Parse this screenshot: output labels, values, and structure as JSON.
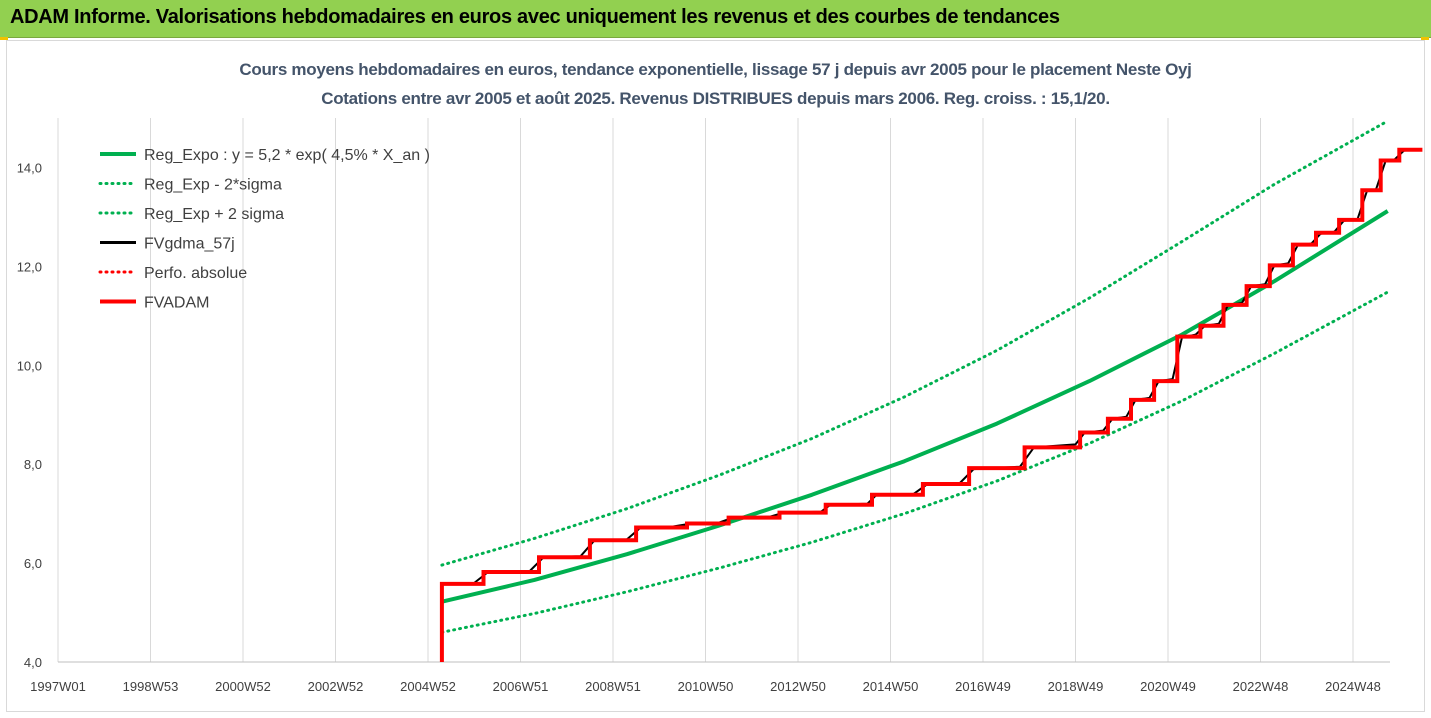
{
  "header": {
    "title": "ADAM Informe. Valorisations hebdomadaires en euros avec uniquement les revenus et des courbes de tendances"
  },
  "chart_data": {
    "type": "line",
    "title": "Cours moyens hebdomadaires en euros, tendance exponentielle, lissage 57 j depuis avr 2005 pour le placement Neste Oyj",
    "subtitle": "Cotations entre avr 2005 et août 2025. Revenus DISTRIBUES depuis mars 2006. Reg. croiss. : 15,1/20.",
    "x_ticks": [
      "1997W01",
      "1998W53",
      "2000W52",
      "2002W52",
      "2004W52",
      "2006W51",
      "2008W51",
      "2010W50",
      "2012W50",
      "2014W50",
      "2016W49",
      "2018W49",
      "2020W49",
      "2022W48",
      "2024W48"
    ],
    "x_tick_years": [
      1997.0,
      1999.0,
      2001.0,
      2003.0,
      2005.0,
      2007.0,
      2009.0,
      2011.0,
      2013.0,
      2015.0,
      2017.0,
      2019.0,
      2021.0,
      2023.0,
      2025.0
    ],
    "xlim": [
      1997.0,
      2025.8
    ],
    "y_ticks": [
      "4,0",
      "6,0",
      "8,0",
      "10,0",
      "12,0",
      "14,0"
    ],
    "ylim": [
      4.0,
      15.0
    ],
    "grid_vertical": true,
    "legend_position": "top-left",
    "colors": {
      "green": "#00b050",
      "black": "#000000",
      "red": "#ff0000"
    },
    "series": [
      {
        "name": "Reg_Expo : y = 5,2 * exp( 4,5% *  X_an )",
        "style": "solid-thick",
        "color": "#00b050",
        "points": [
          [
            2005.3,
            5.22
          ],
          [
            2007.3,
            5.66
          ],
          [
            2009.3,
            6.18
          ],
          [
            2011.3,
            6.76
          ],
          [
            2013.3,
            7.38
          ],
          [
            2015.3,
            8.06
          ],
          [
            2017.3,
            8.82
          ],
          [
            2019.3,
            9.68
          ],
          [
            2021.3,
            10.62
          ],
          [
            2023.3,
            11.7
          ],
          [
            2025.75,
            13.12
          ]
        ]
      },
      {
        "name": "Reg_Exp - 2*sigma",
        "style": "dotted",
        "color": "#00b050",
        "points": [
          [
            2005.3,
            4.6
          ],
          [
            2007.3,
            4.98
          ],
          [
            2009.3,
            5.42
          ],
          [
            2011.3,
            5.9
          ],
          [
            2013.3,
            6.42
          ],
          [
            2015.3,
            7.0
          ],
          [
            2017.3,
            7.66
          ],
          [
            2019.3,
            8.42
          ],
          [
            2021.3,
            9.28
          ],
          [
            2023.3,
            10.24
          ],
          [
            2025.75,
            11.48
          ]
        ]
      },
      {
        "name": "Reg_Exp + 2 sigma",
        "style": "dotted",
        "color": "#00b050",
        "points": [
          [
            2005.3,
            5.96
          ],
          [
            2007.3,
            6.5
          ],
          [
            2009.3,
            7.1
          ],
          [
            2011.3,
            7.78
          ],
          [
            2013.3,
            8.52
          ],
          [
            2015.3,
            9.36
          ],
          [
            2017.3,
            10.3
          ],
          [
            2019.3,
            11.36
          ],
          [
            2021.3,
            12.5
          ],
          [
            2023.3,
            13.66
          ],
          [
            2025.75,
            14.94
          ]
        ]
      },
      {
        "name": "FVgdma_57j",
        "style": "solid",
        "color": "#000000",
        "points": [
          [
            2005.3,
            5.58
          ],
          [
            2006.0,
            5.6
          ],
          [
            2006.3,
            5.82
          ],
          [
            2007.2,
            5.84
          ],
          [
            2007.5,
            6.12
          ],
          [
            2008.3,
            6.14
          ],
          [
            2008.6,
            6.46
          ],
          [
            2009.3,
            6.48
          ],
          [
            2009.6,
            6.72
          ],
          [
            2010.3,
            6.74
          ],
          [
            2010.7,
            6.8
          ],
          [
            2011.3,
            6.82
          ],
          [
            2011.6,
            6.92
          ],
          [
            2012.4,
            6.94
          ],
          [
            2012.7,
            7.02
          ],
          [
            2013.5,
            7.04
          ],
          [
            2013.7,
            7.18
          ],
          [
            2014.5,
            7.2
          ],
          [
            2014.7,
            7.38
          ],
          [
            2015.5,
            7.4
          ],
          [
            2015.8,
            7.6
          ],
          [
            2016.5,
            7.62
          ],
          [
            2016.8,
            7.9
          ],
          [
            2017.8,
            7.95
          ],
          [
            2018.1,
            8.34
          ],
          [
            2019.0,
            8.4
          ],
          [
            2019.2,
            8.64
          ],
          [
            2019.6,
            8.68
          ],
          [
            2019.8,
            8.92
          ],
          [
            2020.1,
            8.96
          ],
          [
            2020.3,
            9.3
          ],
          [
            2020.6,
            9.34
          ],
          [
            2020.8,
            9.68
          ],
          [
            2021.1,
            9.72
          ],
          [
            2021.3,
            10.56
          ],
          [
            2021.6,
            10.62
          ],
          [
            2021.8,
            10.8
          ],
          [
            2022.1,
            10.84
          ],
          [
            2022.3,
            11.22
          ],
          [
            2022.6,
            11.26
          ],
          [
            2022.8,
            11.6
          ],
          [
            2023.1,
            11.64
          ],
          [
            2023.3,
            12.02
          ],
          [
            2023.6,
            12.06
          ],
          [
            2023.8,
            12.42
          ],
          [
            2024.1,
            12.46
          ],
          [
            2024.3,
            12.66
          ],
          [
            2024.6,
            12.7
          ],
          [
            2024.8,
            12.92
          ],
          [
            2025.1,
            12.96
          ],
          [
            2025.3,
            13.52
          ],
          [
            2025.5,
            13.56
          ],
          [
            2025.7,
            14.12
          ],
          [
            2025.9,
            14.16
          ],
          [
            2026.1,
            14.34
          ],
          [
            2026.4,
            14.36
          ]
        ]
      },
      {
        "name": "Perfo. absolue",
        "style": "dotted",
        "color": "#ff0000",
        "points": []
      },
      {
        "name": "FVADAM",
        "style": "step-thick",
        "color": "#ff0000",
        "points": [
          [
            2005.3,
            4.0
          ],
          [
            2005.3,
            5.58
          ],
          [
            2006.2,
            5.58
          ],
          [
            2006.2,
            5.82
          ],
          [
            2007.4,
            5.82
          ],
          [
            2007.4,
            6.12
          ],
          [
            2008.5,
            6.12
          ],
          [
            2008.5,
            6.46
          ],
          [
            2009.5,
            6.46
          ],
          [
            2009.5,
            6.72
          ],
          [
            2010.6,
            6.72
          ],
          [
            2010.6,
            6.8
          ],
          [
            2011.5,
            6.8
          ],
          [
            2011.5,
            6.92
          ],
          [
            2012.6,
            6.92
          ],
          [
            2012.6,
            7.02
          ],
          [
            2013.6,
            7.02
          ],
          [
            2013.6,
            7.18
          ],
          [
            2014.6,
            7.18
          ],
          [
            2014.6,
            7.38
          ],
          [
            2015.7,
            7.38
          ],
          [
            2015.7,
            7.6
          ],
          [
            2016.7,
            7.6
          ],
          [
            2016.7,
            7.92
          ],
          [
            2017.9,
            7.92
          ],
          [
            2017.9,
            8.34
          ],
          [
            2019.1,
            8.34
          ],
          [
            2019.1,
            8.64
          ],
          [
            2019.7,
            8.64
          ],
          [
            2019.7,
            8.92
          ],
          [
            2020.2,
            8.92
          ],
          [
            2020.2,
            9.3
          ],
          [
            2020.7,
            9.3
          ],
          [
            2020.7,
            9.68
          ],
          [
            2021.2,
            9.68
          ],
          [
            2021.2,
            10.58
          ],
          [
            2021.7,
            10.58
          ],
          [
            2021.7,
            10.8
          ],
          [
            2022.2,
            10.8
          ],
          [
            2022.2,
            11.22
          ],
          [
            2022.7,
            11.22
          ],
          [
            2022.7,
            11.6
          ],
          [
            2023.2,
            11.6
          ],
          [
            2023.2,
            12.02
          ],
          [
            2023.7,
            12.02
          ],
          [
            2023.7,
            12.44
          ],
          [
            2024.2,
            12.44
          ],
          [
            2024.2,
            12.68
          ],
          [
            2024.7,
            12.68
          ],
          [
            2024.7,
            12.94
          ],
          [
            2025.2,
            12.94
          ],
          [
            2025.2,
            13.54
          ],
          [
            2025.6,
            13.54
          ],
          [
            2025.6,
            14.14
          ],
          [
            2026.0,
            14.14
          ],
          [
            2026.0,
            14.36
          ],
          [
            2026.5,
            14.36
          ]
        ]
      }
    ]
  }
}
